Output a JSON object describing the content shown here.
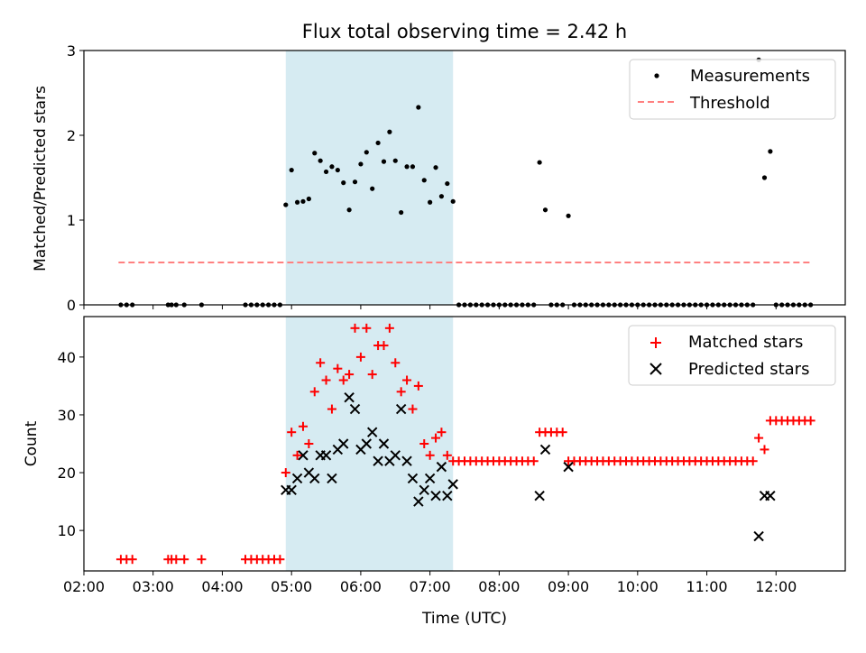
{
  "chart_data": [
    {
      "type": "scatter",
      "title": "Flux total observing time = 2.42 h",
      "ylabel": "Matched/Predicted stars",
      "xlabel": "",
      "ylim": [
        0,
        3
      ],
      "yticks": [
        0,
        1,
        2,
        3
      ],
      "xlim": [
        "02:00",
        "13:00"
      ],
      "shaded_region": [
        "04:55",
        "07:20"
      ],
      "legend": [
        "Measurements",
        "Threshold"
      ],
      "legend_position": "top-right",
      "threshold": 0.5,
      "threshold_range": [
        "02:30",
        "12:30"
      ],
      "series": [
        {
          "name": "Measurements",
          "points": [
            [
              "02:32",
              0
            ],
            [
              "02:37",
              0
            ],
            [
              "02:42",
              0
            ],
            [
              "03:13",
              0
            ],
            [
              "03:16",
              0
            ],
            [
              "03:20",
              0
            ],
            [
              "03:27",
              0
            ],
            [
              "03:42",
              0
            ],
            [
              "04:20",
              0
            ],
            [
              "04:25",
              0
            ],
            [
              "04:30",
              0
            ],
            [
              "04:35",
              0
            ],
            [
              "04:40",
              0
            ],
            [
              "04:45",
              0
            ],
            [
              "04:50",
              0
            ],
            [
              "04:55",
              1.18
            ],
            [
              "05:00",
              1.59
            ],
            [
              "05:05",
              1.21
            ],
            [
              "05:10",
              1.22
            ],
            [
              "05:15",
              1.25
            ],
            [
              "05:20",
              1.79
            ],
            [
              "05:25",
              1.7
            ],
            [
              "05:30",
              1.57
            ],
            [
              "05:35",
              1.63
            ],
            [
              "05:40",
              1.59
            ],
            [
              "05:45",
              1.44
            ],
            [
              "05:50",
              1.12
            ],
            [
              "05:55",
              1.45
            ],
            [
              "06:00",
              1.66
            ],
            [
              "06:05",
              1.8
            ],
            [
              "06:10",
              1.37
            ],
            [
              "06:15",
              1.91
            ],
            [
              "06:20",
              1.69
            ],
            [
              "06:25",
              2.04
            ],
            [
              "06:30",
              1.7
            ],
            [
              "06:35",
              1.09
            ],
            [
              "06:40",
              1.63
            ],
            [
              "06:45",
              1.63
            ],
            [
              "06:50",
              2.33
            ],
            [
              "06:55",
              1.47
            ],
            [
              "07:00",
              1.21
            ],
            [
              "07:05",
              1.62
            ],
            [
              "07:10",
              1.28
            ],
            [
              "07:15",
              1.43
            ],
            [
              "07:20",
              1.22
            ],
            [
              "07:25",
              0
            ],
            [
              "07:30",
              0
            ],
            [
              "07:35",
              0
            ],
            [
              "07:40",
              0
            ],
            [
              "07:45",
              0
            ],
            [
              "07:50",
              0
            ],
            [
              "07:55",
              0
            ],
            [
              "08:00",
              0
            ],
            [
              "08:05",
              0
            ],
            [
              "08:10",
              0
            ],
            [
              "08:15",
              0
            ],
            [
              "08:20",
              0
            ],
            [
              "08:25",
              0
            ],
            [
              "08:30",
              0
            ],
            [
              "08:35",
              1.68
            ],
            [
              "08:40",
              1.12
            ],
            [
              "08:45",
              0
            ],
            [
              "08:50",
              0
            ],
            [
              "08:55",
              0
            ],
            [
              "09:00",
              1.05
            ],
            [
              "09:05",
              0
            ],
            [
              "09:10",
              0
            ],
            [
              "09:15",
              0
            ],
            [
              "09:20",
              0
            ],
            [
              "09:25",
              0
            ],
            [
              "09:30",
              0
            ],
            [
              "09:35",
              0
            ],
            [
              "09:40",
              0
            ],
            [
              "09:45",
              0
            ],
            [
              "09:50",
              0
            ],
            [
              "09:55",
              0
            ],
            [
              "10:00",
              0
            ],
            [
              "10:05",
              0
            ],
            [
              "10:10",
              0
            ],
            [
              "10:15",
              0
            ],
            [
              "10:20",
              0
            ],
            [
              "10:25",
              0
            ],
            [
              "10:30",
              0
            ],
            [
              "10:35",
              0
            ],
            [
              "10:40",
              0
            ],
            [
              "10:45",
              0
            ],
            [
              "10:50",
              0
            ],
            [
              "10:55",
              0
            ],
            [
              "11:00",
              0
            ],
            [
              "11:05",
              0
            ],
            [
              "11:10",
              0
            ],
            [
              "11:15",
              0
            ],
            [
              "11:20",
              0
            ],
            [
              "11:25",
              0
            ],
            [
              "11:30",
              0
            ],
            [
              "11:35",
              0
            ],
            [
              "11:40",
              0
            ],
            [
              "11:45",
              2.89
            ],
            [
              "11:50",
              1.5
            ],
            [
              "11:55",
              1.81
            ],
            [
              "12:00",
              0
            ],
            [
              "12:05",
              0
            ],
            [
              "12:10",
              0
            ],
            [
              "12:15",
              0
            ],
            [
              "12:20",
              0
            ],
            [
              "12:25",
              0
            ],
            [
              "12:30",
              0
            ]
          ]
        }
      ]
    },
    {
      "type": "scatter",
      "title": "",
      "ylabel": "Count",
      "xlabel": "Time (UTC)",
      "ylim": [
        3,
        47
      ],
      "yticks": [
        10,
        20,
        30,
        40
      ],
      "xlim": [
        "02:00",
        "13:00"
      ],
      "xticks": [
        "02:00",
        "03:00",
        "04:00",
        "05:00",
        "06:00",
        "07:00",
        "08:00",
        "09:00",
        "10:00",
        "11:00",
        "12:00"
      ],
      "shaded_region": [
        "04:55",
        "07:20"
      ],
      "legend": [
        "Matched stars",
        "Predicted stars"
      ],
      "legend_position": "top-right",
      "series": [
        {
          "name": "Matched stars",
          "points": [
            [
              "02:32",
              5
            ],
            [
              "02:37",
              5
            ],
            [
              "02:42",
              5
            ],
            [
              "03:13",
              5
            ],
            [
              "03:16",
              5
            ],
            [
              "03:20",
              5
            ],
            [
              "03:27",
              5
            ],
            [
              "03:42",
              5
            ],
            [
              "04:20",
              5
            ],
            [
              "04:25",
              5
            ],
            [
              "04:30",
              5
            ],
            [
              "04:35",
              5
            ],
            [
              "04:40",
              5
            ],
            [
              "04:45",
              5
            ],
            [
              "04:50",
              5
            ],
            [
              "04:55",
              20
            ],
            [
              "05:00",
              27
            ],
            [
              "05:05",
              23
            ],
            [
              "05:10",
              28
            ],
            [
              "05:15",
              25
            ],
            [
              "05:20",
              34
            ],
            [
              "05:25",
              39
            ],
            [
              "05:30",
              36
            ],
            [
              "05:35",
              31
            ],
            [
              "05:40",
              38
            ],
            [
              "05:45",
              36
            ],
            [
              "05:50",
              37
            ],
            [
              "05:55",
              45
            ],
            [
              "06:00",
              40
            ],
            [
              "06:05",
              45
            ],
            [
              "06:10",
              37
            ],
            [
              "06:15",
              42
            ],
            [
              "06:20",
              42
            ],
            [
              "06:25",
              45
            ],
            [
              "06:30",
              39
            ],
            [
              "06:35",
              34
            ],
            [
              "06:40",
              36
            ],
            [
              "06:45",
              31
            ],
            [
              "06:50",
              35
            ],
            [
              "06:55",
              25
            ],
            [
              "07:00",
              23
            ],
            [
              "07:05",
              26
            ],
            [
              "07:10",
              27
            ],
            [
              "07:15",
              23
            ],
            [
              "07:20",
              22
            ],
            [
              "07:25",
              22
            ],
            [
              "07:30",
              22
            ],
            [
              "07:35",
              22
            ],
            [
              "07:40",
              22
            ],
            [
              "07:45",
              22
            ],
            [
              "07:50",
              22
            ],
            [
              "07:55",
              22
            ],
            [
              "08:00",
              22
            ],
            [
              "08:05",
              22
            ],
            [
              "08:10",
              22
            ],
            [
              "08:15",
              22
            ],
            [
              "08:20",
              22
            ],
            [
              "08:25",
              22
            ],
            [
              "08:30",
              22
            ],
            [
              "08:35",
              27
            ],
            [
              "08:40",
              27
            ],
            [
              "08:45",
              27
            ],
            [
              "08:50",
              27
            ],
            [
              "08:55",
              27
            ],
            [
              "09:00",
              22
            ],
            [
              "09:05",
              22
            ],
            [
              "09:10",
              22
            ],
            [
              "09:15",
              22
            ],
            [
              "09:20",
              22
            ],
            [
              "09:25",
              22
            ],
            [
              "09:30",
              22
            ],
            [
              "09:35",
              22
            ],
            [
              "09:40",
              22
            ],
            [
              "09:45",
              22
            ],
            [
              "09:50",
              22
            ],
            [
              "09:55",
              22
            ],
            [
              "10:00",
              22
            ],
            [
              "10:05",
              22
            ],
            [
              "10:10",
              22
            ],
            [
              "10:15",
              22
            ],
            [
              "10:20",
              22
            ],
            [
              "10:25",
              22
            ],
            [
              "10:30",
              22
            ],
            [
              "10:35",
              22
            ],
            [
              "10:40",
              22
            ],
            [
              "10:45",
              22
            ],
            [
              "10:50",
              22
            ],
            [
              "10:55",
              22
            ],
            [
              "11:00",
              22
            ],
            [
              "11:05",
              22
            ],
            [
              "11:10",
              22
            ],
            [
              "11:15",
              22
            ],
            [
              "11:20",
              22
            ],
            [
              "11:25",
              22
            ],
            [
              "11:30",
              22
            ],
            [
              "11:35",
              22
            ],
            [
              "11:40",
              22
            ],
            [
              "11:45",
              26
            ],
            [
              "11:50",
              24
            ],
            [
              "11:55",
              29
            ],
            [
              "12:00",
              29
            ],
            [
              "12:05",
              29
            ],
            [
              "12:10",
              29
            ],
            [
              "12:15",
              29
            ],
            [
              "12:20",
              29
            ],
            [
              "12:25",
              29
            ],
            [
              "12:30",
              29
            ]
          ]
        },
        {
          "name": "Predicted stars",
          "points": [
            [
              "04:55",
              17
            ],
            [
              "05:00",
              17
            ],
            [
              "05:05",
              19
            ],
            [
              "05:10",
              23
            ],
            [
              "05:15",
              20
            ],
            [
              "05:20",
              19
            ],
            [
              "05:25",
              23
            ],
            [
              "05:30",
              23
            ],
            [
              "05:35",
              19
            ],
            [
              "05:40",
              24
            ],
            [
              "05:45",
              25
            ],
            [
              "05:50",
              33
            ],
            [
              "05:55",
              31
            ],
            [
              "06:00",
              24
            ],
            [
              "06:05",
              25
            ],
            [
              "06:10",
              27
            ],
            [
              "06:15",
              22
            ],
            [
              "06:20",
              25
            ],
            [
              "06:25",
              22
            ],
            [
              "06:30",
              23
            ],
            [
              "06:35",
              31
            ],
            [
              "06:40",
              22
            ],
            [
              "06:45",
              19
            ],
            [
              "06:50",
              15
            ],
            [
              "06:55",
              17
            ],
            [
              "07:00",
              19
            ],
            [
              "07:05",
              16
            ],
            [
              "07:10",
              21
            ],
            [
              "07:15",
              16
            ],
            [
              "07:20",
              18
            ],
            [
              "08:35",
              16
            ],
            [
              "08:40",
              24
            ],
            [
              "09:00",
              21
            ],
            [
              "11:45",
              9
            ],
            [
              "11:50",
              16
            ],
            [
              "11:55",
              16
            ]
          ]
        }
      ]
    }
  ]
}
